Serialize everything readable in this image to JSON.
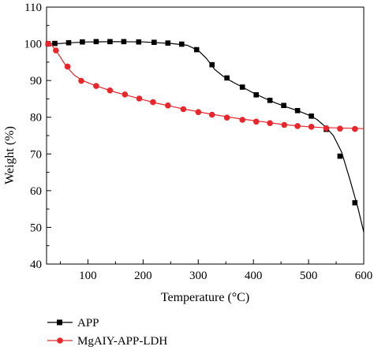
{
  "chart_data": {
    "type": "line",
    "title": "",
    "xlabel": "Temperature (°C)",
    "ylabel": "Weight (%)",
    "xlim": [
      25,
      600
    ],
    "ylim": [
      40,
      110
    ],
    "x_ticks": [
      100,
      200,
      300,
      400,
      500,
      600
    ],
    "y_ticks": [
      40,
      50,
      60,
      70,
      80,
      90,
      100,
      110
    ],
    "grid": false,
    "legend_position": "bottom-left, below plot",
    "series": [
      {
        "name": "APP",
        "color": "#000000",
        "marker": "square",
        "curve": [
          [
            25,
            100
          ],
          [
            40,
            100
          ],
          [
            70,
            100.3
          ],
          [
            100,
            100.5
          ],
          [
            150,
            100.6
          ],
          [
            200,
            100.5
          ],
          [
            250,
            100.1
          ],
          [
            280,
            99.6
          ],
          [
            300,
            98.2
          ],
          [
            315,
            96
          ],
          [
            330,
            93
          ],
          [
            345,
            91.2
          ],
          [
            360,
            89.8
          ],
          [
            380,
            88.2
          ],
          [
            400,
            86.6
          ],
          [
            420,
            85.2
          ],
          [
            440,
            83.9
          ],
          [
            460,
            82.8
          ],
          [
            480,
            81.8
          ],
          [
            500,
            80.6
          ],
          [
            515,
            79.4
          ],
          [
            530,
            77.5
          ],
          [
            545,
            75
          ],
          [
            560,
            70.5
          ],
          [
            575,
            63
          ],
          [
            590,
            55
          ],
          [
            600,
            48.7
          ]
        ],
        "markers": [
          [
            28,
            100
          ],
          [
            40,
            100.1
          ],
          [
            65,
            100.3
          ],
          [
            90,
            100.5
          ],
          [
            115,
            100.6
          ],
          [
            140,
            100.6
          ],
          [
            165,
            100.6
          ],
          [
            192,
            100.5
          ],
          [
            220,
            100.4
          ],
          [
            245,
            100.2
          ],
          [
            270,
            99.9
          ],
          [
            297,
            98.4
          ],
          [
            325,
            94.3
          ],
          [
            352,
            90.7
          ],
          [
            380,
            88.2
          ],
          [
            405,
            86.1
          ],
          [
            430,
            84.6
          ],
          [
            455,
            83.2
          ],
          [
            480,
            81.8
          ],
          [
            505,
            80.3
          ],
          [
            532,
            76.7
          ],
          [
            557,
            69.4
          ],
          [
            584,
            56.7
          ]
        ]
      },
      {
        "name": "MgAIY-APP-LDH",
        "color": "#e8262b",
        "marker": "circle",
        "curve": [
          [
            25,
            100
          ],
          [
            35,
            99.5
          ],
          [
            45,
            97.5
          ],
          [
            60,
            94
          ],
          [
            75,
            91.5
          ],
          [
            90,
            90
          ],
          [
            110,
            88.8
          ],
          [
            130,
            87.8
          ],
          [
            150,
            86.8
          ],
          [
            175,
            85.8
          ],
          [
            200,
            84.8
          ],
          [
            225,
            83.8
          ],
          [
            250,
            83
          ],
          [
            275,
            82.2
          ],
          [
            300,
            81.5
          ],
          [
            325,
            80.8
          ],
          [
            350,
            80.2
          ],
          [
            375,
            79.6
          ],
          [
            400,
            79.1
          ],
          [
            425,
            78.6
          ],
          [
            450,
            78.1
          ],
          [
            475,
            77.7
          ],
          [
            500,
            77.4
          ],
          [
            525,
            77.2
          ],
          [
            550,
            77.1
          ],
          [
            575,
            77
          ],
          [
            600,
            76.9
          ]
        ],
        "markers": [
          [
            28,
            100
          ],
          [
            42,
            98.2
          ],
          [
            63,
            93.8
          ],
          [
            88,
            89.9
          ],
          [
            115,
            88.5
          ],
          [
            140,
            87.3
          ],
          [
            167,
            86.2
          ],
          [
            193,
            85.1
          ],
          [
            218,
            84.1
          ],
          [
            245,
            83.2
          ],
          [
            273,
            82.2
          ],
          [
            300,
            81.4
          ],
          [
            325,
            80.7
          ],
          [
            352,
            79.9
          ],
          [
            380,
            79.3
          ],
          [
            405,
            78.8
          ],
          [
            430,
            78.4
          ],
          [
            456,
            77.9
          ],
          [
            480,
            77.6
          ],
          [
            505,
            77.4
          ],
          [
            532,
            77
          ],
          [
            557,
            76.9
          ],
          [
            584,
            76.8
          ]
        ]
      }
    ]
  }
}
